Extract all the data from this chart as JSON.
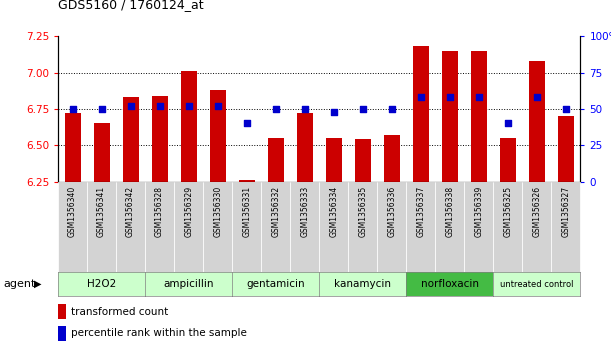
{
  "title": "GDS5160 / 1760124_at",
  "samples": [
    "GSM1356340",
    "GSM1356341",
    "GSM1356342",
    "GSM1356328",
    "GSM1356329",
    "GSM1356330",
    "GSM1356331",
    "GSM1356332",
    "GSM1356333",
    "GSM1356334",
    "GSM1356335",
    "GSM1356336",
    "GSM1356337",
    "GSM1356338",
    "GSM1356339",
    "GSM1356325",
    "GSM1356326",
    "GSM1356327"
  ],
  "bar_values": [
    6.72,
    6.65,
    6.83,
    6.84,
    7.01,
    6.88,
    6.26,
    6.55,
    6.72,
    6.55,
    6.54,
    6.57,
    7.18,
    7.15,
    7.15,
    6.55,
    7.08,
    6.7
  ],
  "percentile_values": [
    50,
    50,
    52,
    52,
    52,
    52,
    40,
    50,
    50,
    48,
    50,
    50,
    58,
    58,
    58,
    40,
    58,
    50
  ],
  "groups": [
    {
      "label": "H2O2",
      "start": 0,
      "end": 2
    },
    {
      "label": "ampicillin",
      "start": 3,
      "end": 5
    },
    {
      "label": "gentamicin",
      "start": 6,
      "end": 8
    },
    {
      "label": "kanamycin",
      "start": 9,
      "end": 11
    },
    {
      "label": "norfloxacin",
      "start": 12,
      "end": 14
    },
    {
      "label": "untreated control",
      "start": 15,
      "end": 17
    }
  ],
  "group_colors": [
    "#ccffcc",
    "#ccffcc",
    "#ccffcc",
    "#ccffcc",
    "#44bb44",
    "#ccffcc"
  ],
  "ylim_left": [
    6.25,
    7.25
  ],
  "ylim_right": [
    0,
    100
  ],
  "yticks_left": [
    6.25,
    6.5,
    6.75,
    7.0,
    7.25
  ],
  "yticks_right": [
    0,
    25,
    50,
    75,
    100
  ],
  "bar_color": "#cc0000",
  "dot_color": "#0000cc",
  "bar_bottom": 6.25,
  "background_color": "#ffffff",
  "agent_label": "agent",
  "legend_bar": "transformed count",
  "legend_dot": "percentile rank within the sample"
}
